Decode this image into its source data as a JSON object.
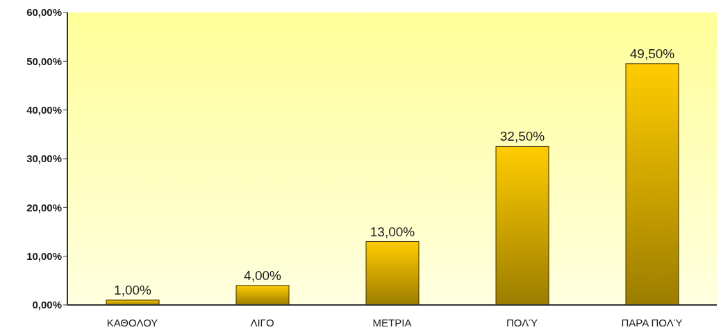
{
  "chart_data": {
    "type": "bar",
    "categories": [
      "ΚΑΘΟΛΟΥ",
      "ΛΙΓΟ",
      "ΜΕΤΡΙΑ",
      "ΠΟΛΎ",
      "ΠΑΡΑ ΠΟΛΎ"
    ],
    "values": [
      1,
      4,
      13,
      32.5,
      49.5
    ],
    "value_labels": [
      "1,00%",
      "4,00%",
      "13,00%",
      "32,50%",
      "49,50%"
    ],
    "color": "#ffcc00",
    "ylim": [
      0,
      60
    ],
    "yticks": [
      {
        "value": 0,
        "label": "0,00%"
      },
      {
        "value": 10,
        "label": "10,00%"
      },
      {
        "value": 20,
        "label": "20,00%"
      },
      {
        "value": 30,
        "label": "30,00%"
      },
      {
        "value": 40,
        "label": "40,00%"
      },
      {
        "value": 50,
        "label": "50,00%"
      },
      {
        "value": 60,
        "label": "60,00%"
      }
    ],
    "grid": false,
    "legend": false
  }
}
